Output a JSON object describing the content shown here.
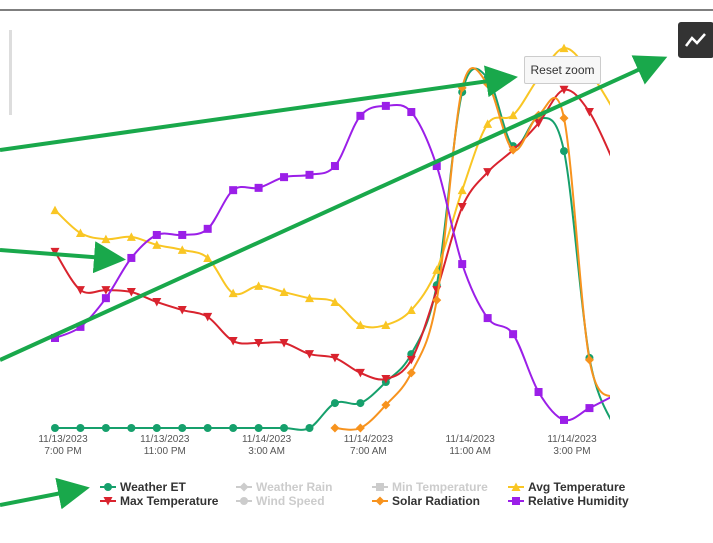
{
  "chart_data": {
    "type": "line",
    "smooth": true,
    "categories": [
      "11/13/2023\n7:00 PM",
      null,
      null,
      null,
      "11/13/2023\n11:00 PM",
      null,
      null,
      null,
      "11/14/2023\n3:00 AM",
      null,
      null,
      null,
      "11/14/2023\n7:00 AM",
      null,
      null,
      null,
      "11/14/2023\n11:00 AM",
      null,
      null,
      null,
      "11/14/2023\n3:00 PM",
      null,
      null
    ],
    "ylim": [
      0,
      100
    ],
    "series": [
      {
        "name": "Weather ET",
        "color": "#16a06c",
        "marker": "circle",
        "values": [
          0,
          0,
          0,
          0,
          0,
          0,
          0,
          0,
          0,
          0,
          0,
          6.5,
          6.5,
          12,
          19.3,
          37.3,
          87.7,
          91.4,
          73.6,
          80.9,
          72.3,
          18.3,
          0
        ]
      },
      {
        "name": "Weather Rain",
        "color": "#cccccc",
        "marker": "diamond",
        "visible": false
      },
      {
        "name": "Min Temperature",
        "color": "#cccccc",
        "marker": "square",
        "visible": false
      },
      {
        "name": "Avg Temperature",
        "color": "#f9c624",
        "marker": "triangle",
        "values": [
          56.9,
          50.9,
          49.3,
          49.9,
          47.8,
          46.5,
          44.4,
          35.2,
          37.1,
          35.5,
          33.9,
          32.9,
          26.9,
          26.9,
          30.8,
          41.3,
          62.1,
          79.4,
          81.7,
          91.4,
          99.2,
          93,
          82.5
        ]
      },
      {
        "name": "Max Temperature",
        "color": "#d9232e",
        "marker": "triangle-down",
        "values": [
          46,
          36,
          36,
          35.5,
          32.9,
          30.8,
          29,
          22.7,
          22.2,
          22.2,
          19.3,
          18.3,
          14.4,
          12.8,
          17.8,
          36,
          57.7,
          66.8,
          72.6,
          79.6,
          88.3,
          82.5,
          68.7
        ]
      },
      {
        "name": "Wind Speed",
        "color": "#cccccc",
        "marker": "circle",
        "visible": false
      },
      {
        "name": "Solar Radiation",
        "color": "#f7931e",
        "marker": "diamond",
        "values": [
          null,
          null,
          null,
          null,
          null,
          null,
          null,
          null,
          null,
          null,
          null,
          0,
          0,
          6,
          14.4,
          33.4,
          88.8,
          89.8,
          72.6,
          81.7,
          80.9,
          17.8,
          7.8
        ]
      },
      {
        "name": "Relative Humidity",
        "color": "#9b1fe8",
        "marker": "square",
        "values": [
          23.5,
          26.4,
          33.9,
          44.4,
          50.4,
          50.4,
          52,
          62.1,
          62.7,
          65.5,
          66.1,
          68.4,
          81.5,
          84.1,
          82.5,
          68.4,
          42.8,
          28.7,
          24.5,
          9.4,
          2.1,
          5.2,
          8.6
        ]
      }
    ]
  },
  "reset_zoom_button": "Reset zoom"
}
